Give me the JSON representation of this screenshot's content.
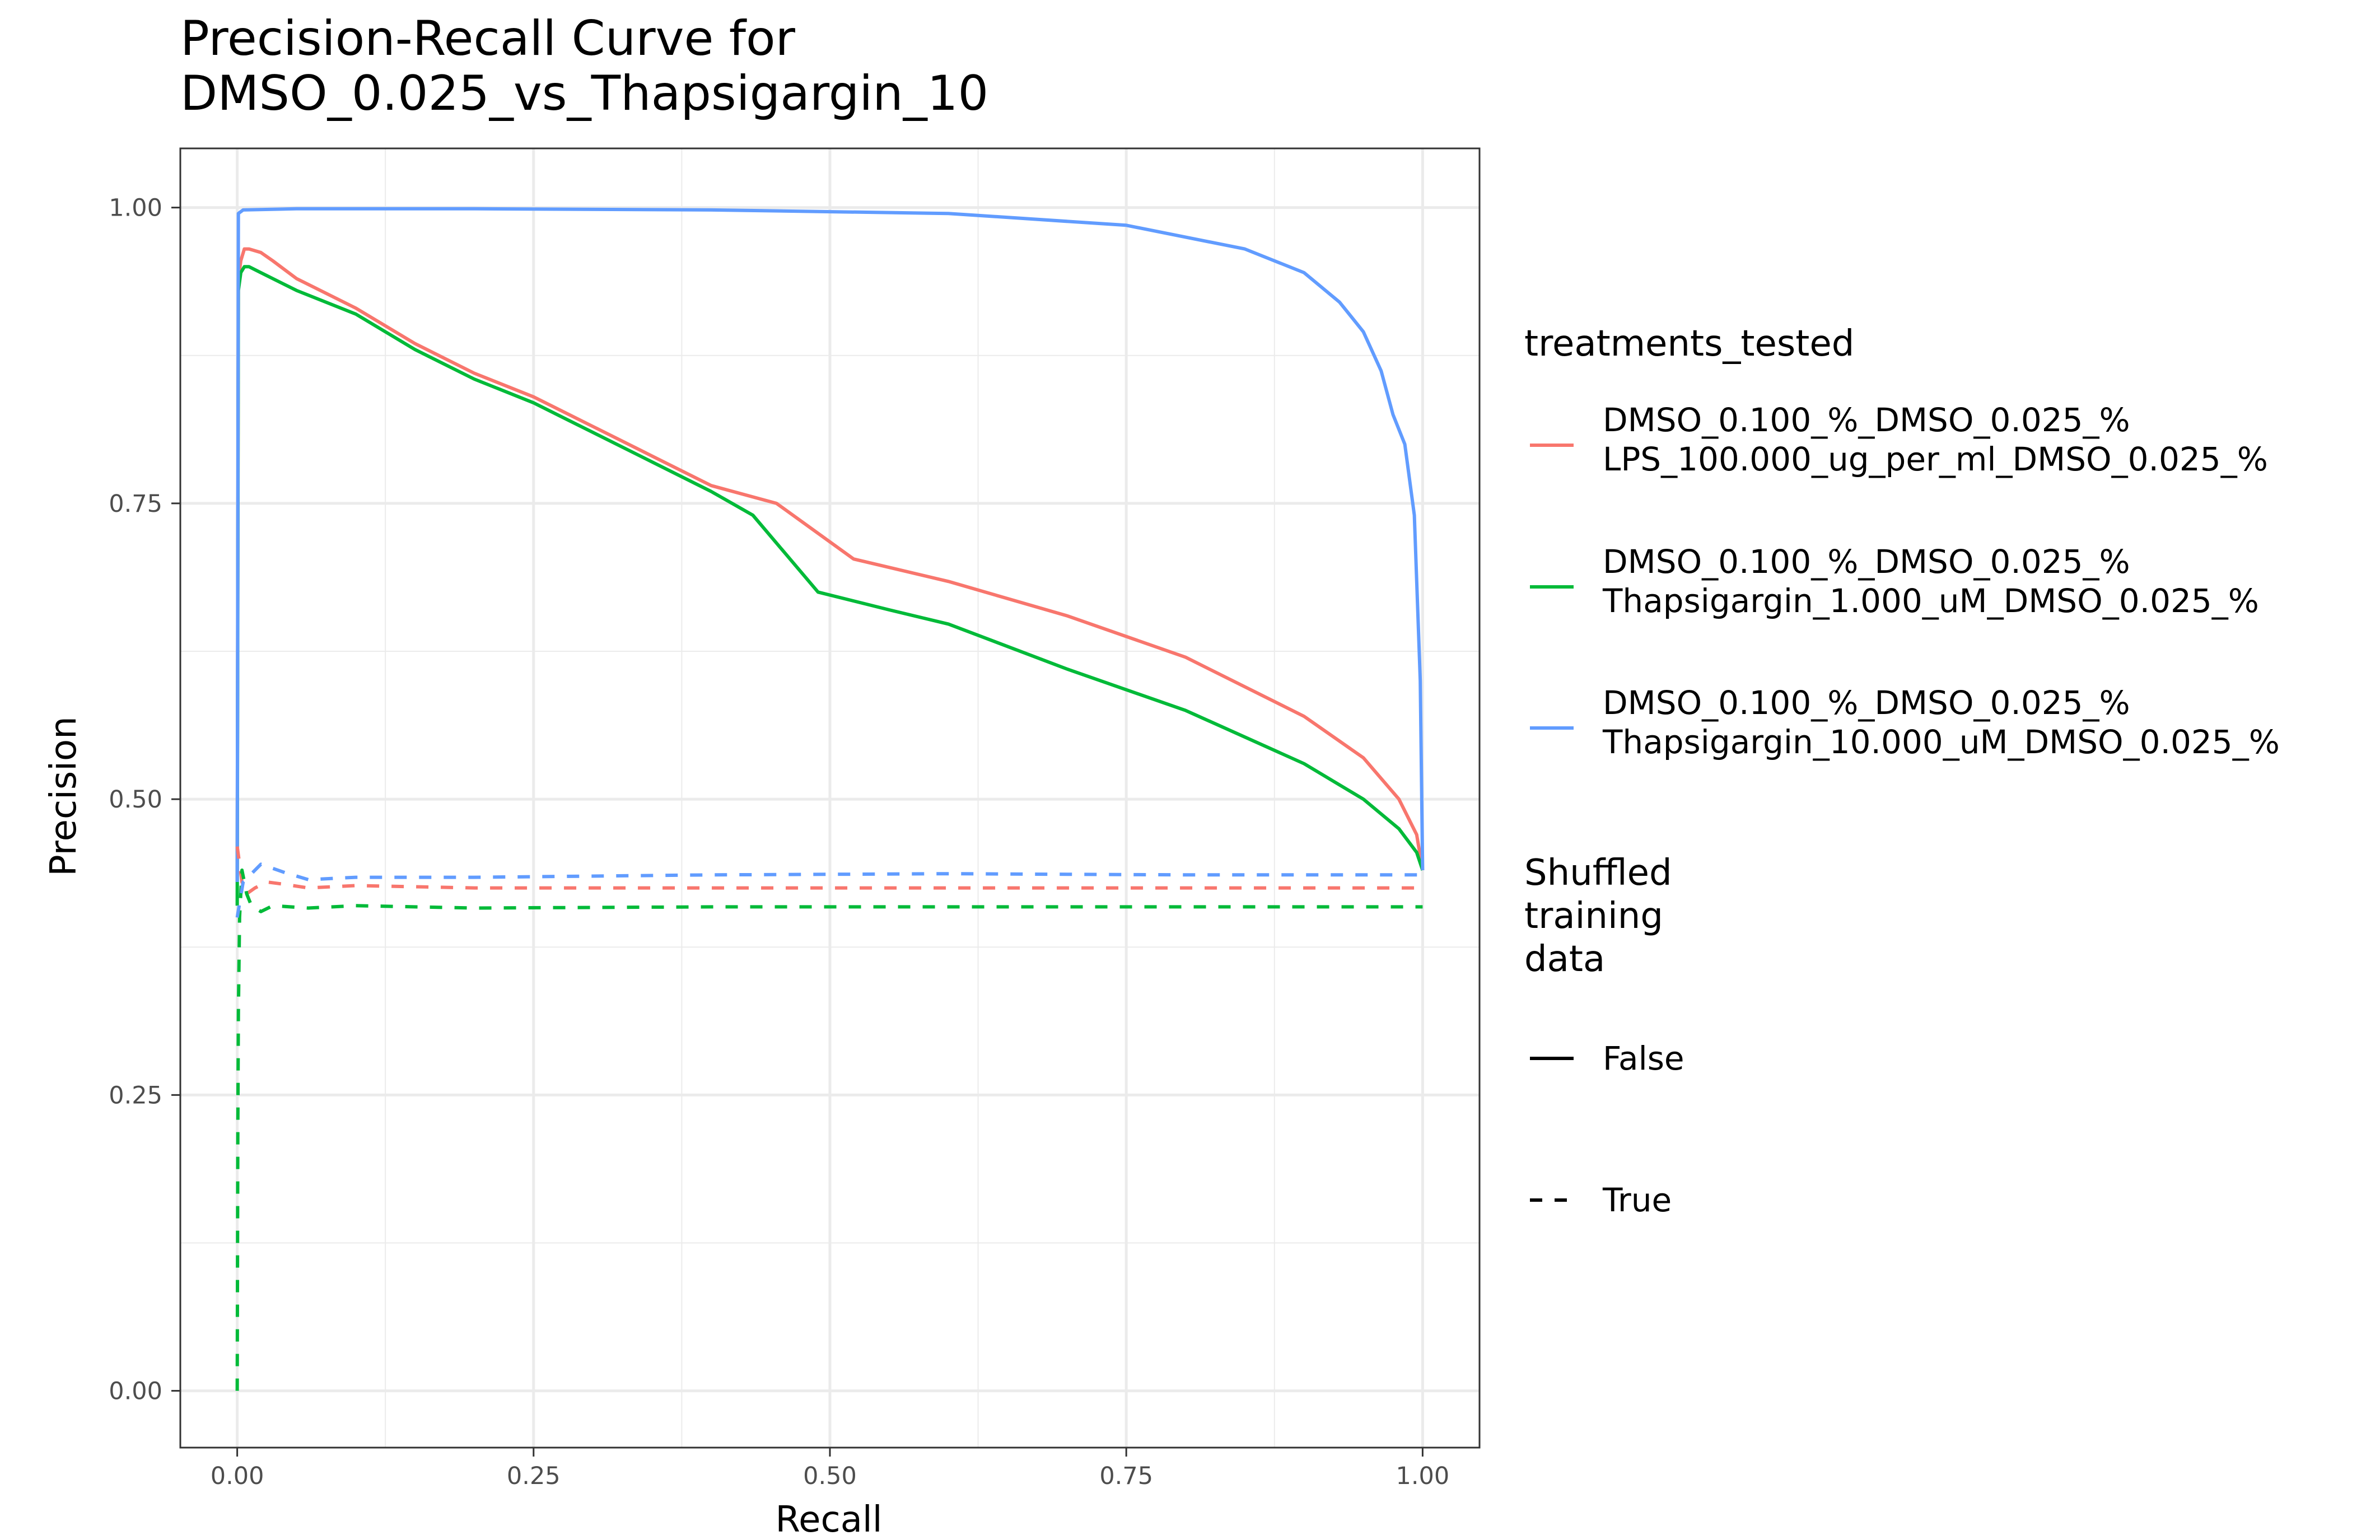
{
  "chart_data": {
    "type": "line",
    "title_lines": [
      "Precision-Recall Curve for",
      "DMSO_0.025_vs_Thapsigargin_10"
    ],
    "xlabel": "Recall",
    "ylabel": "Precision",
    "xlim": [
      -0.048,
      1.048
    ],
    "ylim": [
      -0.048,
      1.05
    ],
    "x_ticks": [
      0,
      0.25,
      0.5,
      0.75,
      1
    ],
    "x_tick_labels": [
      "0.00",
      "0.25",
      "0.50",
      "0.75",
      "1.00"
    ],
    "y_ticks": [
      0,
      0.25,
      0.5,
      0.75,
      1
    ],
    "y_tick_labels": [
      "0.00",
      "0.25",
      "0.50",
      "0.75",
      "1.00"
    ],
    "grid": true,
    "legend_placement": "right",
    "legend_color": {
      "title": "treatments_tested",
      "entries": [
        {
          "lines": [
            "DMSO_0.100_%_DMSO_0.025_%",
            "LPS_100.000_ug_per_ml_DMSO_0.025_%"
          ],
          "color": "#F8766D"
        },
        {
          "lines": [
            "DMSO_0.100_%_DMSO_0.025_%",
            "Thapsigargin_1.000_uM_DMSO_0.025_%"
          ],
          "color": "#00BA38"
        },
        {
          "lines": [
            "DMSO_0.100_%_DMSO_0.025_%",
            "Thapsigargin_10.000_uM_DMSO_0.025_%"
          ],
          "color": "#619CFF"
        }
      ]
    },
    "legend_linetype": {
      "title_lines": [
        "Shuffled",
        "training",
        "data"
      ],
      "entries": [
        {
          "label": "False",
          "dash": "solid"
        },
        {
          "label": "True",
          "dash": "dashed"
        }
      ]
    },
    "series": [
      {
        "color": "#F8766D",
        "dash": "solid",
        "x": [
          0.0,
          0.001,
          0.003,
          0.006,
          0.01,
          0.02,
          0.03,
          0.05,
          0.1,
          0.15,
          0.2,
          0.25,
          0.3,
          0.35,
          0.4,
          0.455,
          0.52,
          0.6,
          0.7,
          0.8,
          0.9,
          0.95,
          0.98,
          0.995,
          1.0
        ],
        "y": [
          0.43,
          0.94,
          0.955,
          0.965,
          0.965,
          0.962,
          0.955,
          0.94,
          0.915,
          0.885,
          0.86,
          0.84,
          0.815,
          0.79,
          0.765,
          0.75,
          0.703,
          0.684,
          0.655,
          0.62,
          0.57,
          0.535,
          0.5,
          0.47,
          0.44
        ]
      },
      {
        "color": "#00BA38",
        "dash": "solid",
        "x": [
          0.0,
          0.001,
          0.003,
          0.006,
          0.01,
          0.02,
          0.05,
          0.1,
          0.15,
          0.2,
          0.25,
          0.3,
          0.35,
          0.4,
          0.435,
          0.49,
          0.55,
          0.6,
          0.7,
          0.8,
          0.9,
          0.95,
          0.98,
          0.995,
          1.0
        ],
        "y": [
          0.41,
          0.93,
          0.945,
          0.95,
          0.95,
          0.945,
          0.93,
          0.91,
          0.88,
          0.855,
          0.835,
          0.81,
          0.785,
          0.76,
          0.74,
          0.675,
          0.66,
          0.648,
          0.61,
          0.575,
          0.53,
          0.5,
          0.475,
          0.455,
          0.44
        ]
      },
      {
        "color": "#619CFF",
        "dash": "solid",
        "x": [
          0.0,
          0.001,
          0.005,
          0.05,
          0.2,
          0.4,
          0.6,
          0.75,
          0.85,
          0.9,
          0.93,
          0.95,
          0.965,
          0.975,
          0.985,
          0.993,
          0.998,
          1.0
        ],
        "y": [
          0.43,
          0.995,
          0.998,
          0.999,
          0.999,
          0.998,
          0.995,
          0.985,
          0.965,
          0.945,
          0.92,
          0.895,
          0.862,
          0.825,
          0.8,
          0.74,
          0.6,
          0.44
        ]
      },
      {
        "color": "#F8766D",
        "dash": "dashed",
        "x": [
          0.0,
          0.004,
          0.008,
          0.015,
          0.025,
          0.04,
          0.06,
          0.1,
          0.2,
          0.4,
          0.6,
          0.8,
          1.0
        ],
        "y": [
          0.46,
          0.43,
          0.42,
          0.425,
          0.43,
          0.428,
          0.425,
          0.427,
          0.425,
          0.425,
          0.425,
          0.425,
          0.425
        ]
      },
      {
        "color": "#00BA38",
        "dash": "dashed",
        "x": [
          0.0,
          0.0005,
          0.001,
          0.002,
          0.004,
          0.008,
          0.012,
          0.02,
          0.03,
          0.06,
          0.1,
          0.2,
          0.4,
          0.6,
          0.8,
          1.0
        ],
        "y": [
          0.0,
          0.22,
          0.32,
          0.4,
          0.44,
          0.42,
          0.41,
          0.405,
          0.41,
          0.408,
          0.41,
          0.408,
          0.409,
          0.409,
          0.409,
          0.409
        ]
      },
      {
        "color": "#619CFF",
        "dash": "dashed",
        "x": [
          0.0,
          0.005,
          0.01,
          0.02,
          0.04,
          0.06,
          0.1,
          0.2,
          0.4,
          0.6,
          0.8,
          1.0
        ],
        "y": [
          0.4,
          0.43,
          0.435,
          0.445,
          0.438,
          0.432,
          0.434,
          0.434,
          0.436,
          0.437,
          0.436,
          0.436
        ]
      }
    ]
  }
}
